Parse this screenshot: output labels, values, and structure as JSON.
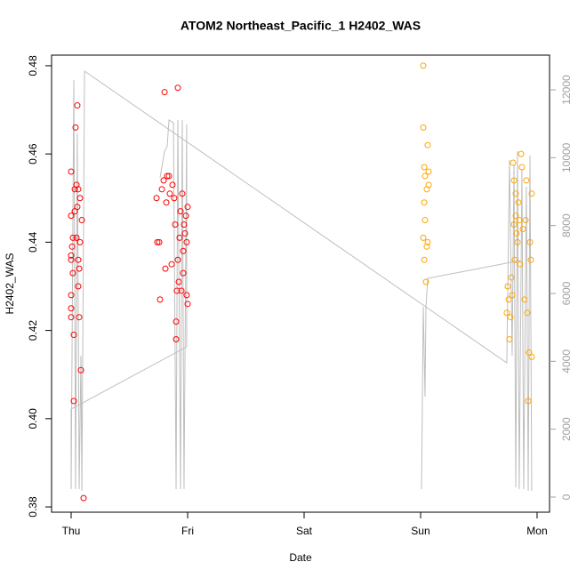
{
  "chart_data": {
    "type": "scatter",
    "title": "ATOM2 Northeast_Pacific_1 H2402_WAS",
    "xlabel": "Date",
    "ylabel": "H2402_WAS",
    "xlim": [
      -0.168,
      4.107
    ],
    "xticks": [
      {
        "value": 0,
        "label": "Thu"
      },
      {
        "value": 1,
        "label": "Fri"
      },
      {
        "value": 2,
        "label": "Sat"
      },
      {
        "value": 3,
        "label": "Sun"
      },
      {
        "value": 4,
        "label": "Mon"
      }
    ],
    "ylim": [
      0.3788,
      0.4824
    ],
    "yticks": [
      0.38,
      {
        "value": 0.4,
        "label": "0.40"
      },
      0.42,
      0.44,
      0.46,
      0.48
    ],
    "y2lim": [
      -445,
      13022
    ],
    "y2ticks": [
      0,
      2000,
      4000,
      6000,
      8000,
      10000,
      12000
    ],
    "y2color": "#a0a0a0",
    "series": [
      {
        "type": "scatter",
        "color": "#ff0000",
        "x": [
          0,
          0,
          0,
          0,
          0,
          0,
          0,
          0.008,
          0.015,
          0.015,
          0.023,
          0.023,
          0.031,
          0.031,
          0.038,
          0.046,
          0.046,
          0.053,
          0.053,
          0.061,
          0.061,
          0.061,
          0.069,
          0.069,
          0.076,
          0.076,
          0.084,
          0.092,
          0.107,
          0.733,
          0.74,
          0.756,
          0.763,
          0.779,
          0.794,
          0.802,
          0.809,
          0.817,
          0.824,
          0.84,
          0.847,
          0.863,
          0.87,
          0.885,
          0.893,
          0.901,
          0.901,
          0.908,
          0.916,
          0.916,
          0.924,
          0.931,
          0.939,
          0.947,
          0.954,
          0.962,
          0.962,
          0.969,
          0.977,
          0.985,
          0.992,
          0.992,
          1.0,
          1.0
        ],
        "values": [
          0.456,
          0.446,
          0.437,
          0.436,
          0.428,
          0.425,
          0.423,
          0.439,
          0.441,
          0.433,
          0.419,
          0.404,
          0.452,
          0.447,
          0.466,
          0.453,
          0.441,
          0.471,
          0.448,
          0.452,
          0.436,
          0.43,
          0.423,
          0.434,
          0.45,
          0.44,
          0.411,
          0.445,
          0.382,
          0.45,
          0.44,
          0.44,
          0.427,
          0.452,
          0.454,
          0.474,
          0.434,
          0.449,
          0.455,
          0.455,
          0.451,
          0.435,
          0.453,
          0.45,
          0.444,
          0.422,
          0.418,
          0.429,
          0.436,
          0.475,
          0.431,
          0.441,
          0.447,
          0.429,
          0.451,
          0.438,
          0.433,
          0.444,
          0.442,
          0.446,
          0.428,
          0.44,
          0.426,
          0.448
        ]
      },
      {
        "type": "scatter",
        "color": "#ffa500",
        "x": [
          3.023,
          3.023,
          3.023,
          3.031,
          3.031,
          3.031,
          3.038,
          3.038,
          3.046,
          3.053,
          3.053,
          3.061,
          3.061,
          3.069,
          3.069,
          3.74,
          3.748,
          3.756,
          3.763,
          3.771,
          3.779,
          3.786,
          3.794,
          3.802,
          3.802,
          3.809,
          3.817,
          3.817,
          3.824,
          3.832,
          3.84,
          3.847,
          3.855,
          3.863,
          3.87,
          3.878,
          3.893,
          3.901,
          3.908,
          3.916,
          3.924,
          3.931,
          3.939,
          3.947,
          3.954,
          3.954
        ],
        "values": [
          0.48,
          0.466,
          0.441,
          0.457,
          0.449,
          0.436,
          0.455,
          0.445,
          0.431,
          0.452,
          0.439,
          0.462,
          0.44,
          0.456,
          0.453,
          0.424,
          0.43,
          0.427,
          0.418,
          0.423,
          0.432,
          0.428,
          0.458,
          0.454,
          0.444,
          0.436,
          0.451,
          0.446,
          0.442,
          0.44,
          0.449,
          0.445,
          0.435,
          0.46,
          0.457,
          0.443,
          0.427,
          0.445,
          0.454,
          0.424,
          0.404,
          0.415,
          0.44,
          0.436,
          0.451,
          0.414
        ]
      },
      {
        "type": "line",
        "axis": "y2",
        "color": "#bebebe",
        "x": [
          0,
          0,
          0.023,
          0.038,
          0.053,
          0.069,
          0.084,
          0.092,
          0.115,
          3.74,
          3.763,
          3.786,
          3.802,
          3.817,
          3.832,
          3.847,
          3.87,
          3.885,
          3.908,
          3.924,
          3.939,
          3.954,
          null,
          0,
          0.992,
          0.992,
          0.969,
          0.954,
          0.939,
          0.916,
          0.901,
          0.878,
          0.84,
          0.824,
          0.802,
          0.763,
          null,
          3.008,
          3.023,
          3.038,
          3.046,
          3.061,
          3.855
        ],
        "values": [
          2594,
          236,
          12288,
          236,
          10716,
          236,
          4166,
          183,
          12550,
          3956,
          9930,
          4166,
          9800,
          288,
          10192,
          236,
          9668,
          236,
          9144,
          183,
          10061,
          183,
          null,
          2594,
          4428,
          10978,
          236,
          11110,
          236,
          11110,
          236,
          11030,
          11110,
          10323,
          10192,
          9406,
          null,
          236,
          5607,
          2960,
          5607,
          6445,
          6969
        ]
      }
    ]
  }
}
